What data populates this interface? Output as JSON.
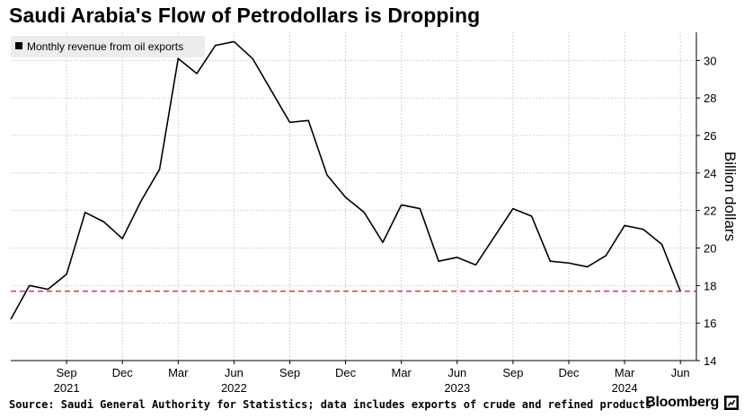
{
  "title": "Saudi Arabia's Flow of Petrodollars is Dropping",
  "source": "Source: Saudi General Authority for Statistics; data includes exports of crude and refined products",
  "brand": "Bloomberg",
  "chart_data": {
    "type": "line",
    "title": "Saudi Arabia's Flow of Petrodollars is Dropping",
    "ylabel": "Billion dollars",
    "ylim": [
      14,
      31.5
    ],
    "yticks": [
      14,
      16,
      18,
      20,
      22,
      24,
      26,
      28,
      30
    ],
    "x": [
      "2021-06",
      "2021-07",
      "2021-08",
      "2021-09",
      "2021-10",
      "2021-11",
      "2021-12",
      "2022-01",
      "2022-02",
      "2022-03",
      "2022-04",
      "2022-05",
      "2022-06",
      "2022-07",
      "2022-08",
      "2022-09",
      "2022-10",
      "2022-11",
      "2022-12",
      "2023-01",
      "2023-02",
      "2023-03",
      "2023-04",
      "2023-05",
      "2023-06",
      "2023-07",
      "2023-08",
      "2023-09",
      "2023-10",
      "2023-11",
      "2023-12",
      "2024-01",
      "2024-02",
      "2024-03",
      "2024-04",
      "2024-05",
      "2024-06"
    ],
    "xticks": [
      {
        "label": "Sep",
        "year": "2021",
        "x": "2021-09"
      },
      {
        "label": "Dec",
        "year": "",
        "x": "2021-12"
      },
      {
        "label": "Mar",
        "year": "",
        "x": "2022-03"
      },
      {
        "label": "Jun",
        "year": "2022",
        "x": "2022-06"
      },
      {
        "label": "Sep",
        "year": "",
        "x": "2022-09"
      },
      {
        "label": "Dec",
        "year": "",
        "x": "2022-12"
      },
      {
        "label": "Mar",
        "year": "",
        "x": "2023-03"
      },
      {
        "label": "Jun",
        "year": "2023",
        "x": "2023-06"
      },
      {
        "label": "Sep",
        "year": "",
        "x": "2023-09"
      },
      {
        "label": "Dec",
        "year": "",
        "x": "2023-12"
      },
      {
        "label": "Mar",
        "year": "2024",
        "x": "2024-03"
      },
      {
        "label": "Jun",
        "year": "",
        "x": "2024-06"
      }
    ],
    "series": [
      {
        "name": "Monthly revenue from oil exports",
        "color": "#000000",
        "values": [
          16.2,
          18.0,
          17.8,
          18.6,
          21.9,
          21.4,
          20.5,
          22.5,
          24.2,
          30.1,
          29.3,
          30.8,
          31.0,
          30.1,
          28.4,
          26.7,
          26.8,
          23.9,
          22.7,
          21.9,
          20.3,
          22.3,
          22.1,
          19.3,
          19.5,
          19.1,
          20.6,
          22.1,
          21.7,
          19.3,
          19.2,
          19.0,
          19.6,
          21.2,
          21.0,
          20.2,
          17.7
        ]
      }
    ],
    "reference_line": {
      "value": 17.7,
      "color": "#e8303a",
      "style": "dashed"
    },
    "grid": true,
    "legend": {
      "position": "top-left",
      "marker_color": "#000000"
    }
  }
}
